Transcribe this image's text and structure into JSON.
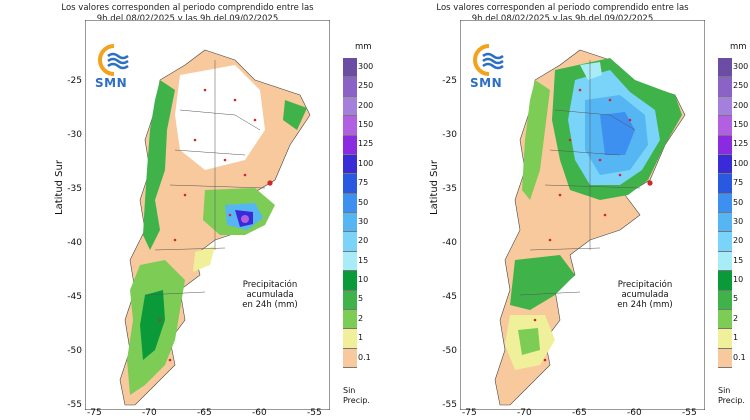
{
  "header": {
    "line1": "Los valores corresponden al periodo comprendido entre las",
    "line2": "9h del 08/02/2025 y las 9h del 09/02/2025"
  },
  "logo": {
    "text": "SMN",
    "icon": "smn-sun-wave-icon"
  },
  "axis": {
    "ylabel": "Latitud Sur",
    "yticks": [
      "-25",
      "-30",
      "-35",
      "-40",
      "-45",
      "-50",
      "-55"
    ],
    "xticks": [
      "-75",
      "-70",
      "-65",
      "-60",
      "-55"
    ]
  },
  "inset_label": {
    "line1": "Precipitación acumulada",
    "line2": "en 24h (mm)"
  },
  "colorbar": {
    "unit": "mm",
    "levels": [
      "300",
      "250",
      "200",
      "150",
      "125",
      "100",
      "75",
      "50",
      "30",
      "20",
      "15",
      "10",
      "5",
      "2",
      "1",
      "0.1"
    ],
    "colors": [
      "#6b4ea3",
      "#8b63c6",
      "#a57fdc",
      "#b060e0",
      "#8a2be2",
      "#3a2bd8",
      "#2a58e0",
      "#3d8ff0",
      "#56b6f4",
      "#7ad3f8",
      "#a8ecf8",
      "#0a9a3a",
      "#3fb24a",
      "#7ccc56",
      "#f0f09a",
      "#f7c99c"
    ],
    "none_label": {
      "line1": "Sin",
      "line2": "Precip."
    }
  },
  "panels": [
    {
      "id": "left"
    },
    {
      "id": "right"
    }
  ]
}
